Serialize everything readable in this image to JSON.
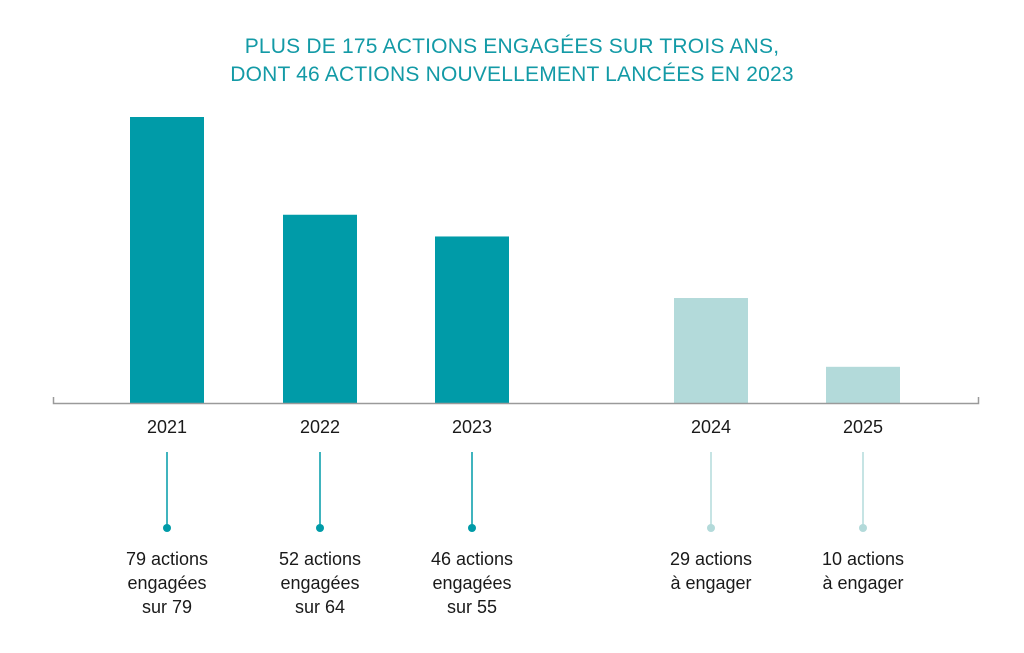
{
  "chart_data": {
    "type": "bar",
    "title": [
      "PLUS DE 175 ACTIONS ENGAGÉES SUR TROIS ANS,",
      "DONT 46 ACTIONS NOUVELLEMENT LANCÉES EN 2023"
    ],
    "categories": [
      "2021",
      "2022",
      "2023",
      "2024",
      "2025"
    ],
    "values": [
      79,
      52,
      46,
      29,
      10
    ],
    "status": [
      "engaged",
      "engaged",
      "engaged",
      "to_engage",
      "to_engage"
    ],
    "annotations": [
      [
        "79 actions",
        "engagées",
        "sur 79"
      ],
      [
        "52 actions",
        "engagées",
        "sur 64"
      ],
      [
        "46 actions",
        "engagées",
        "sur 55"
      ],
      [
        "29 actions",
        "à engager"
      ],
      [
        "10 actions",
        "à engager"
      ]
    ],
    "ylim": [
      0,
      79
    ],
    "grid": false,
    "colors": {
      "engaged": "#009ba8",
      "to_engage": "#b3dada",
      "title": "#139aa6",
      "axis": "#9a9a9a"
    }
  }
}
